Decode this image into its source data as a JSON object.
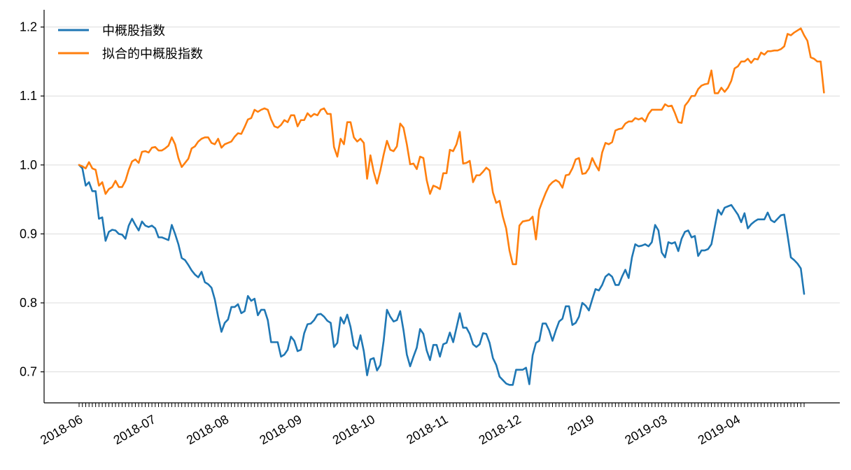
{
  "chart_data": {
    "type": "line",
    "title": "",
    "xlabel": "",
    "ylabel": "",
    "ylim": [
      0.655,
      1.225
    ],
    "yticks": [
      0.7,
      0.8,
      0.9,
      1.0,
      1.1,
      1.2
    ],
    "ytick_labels": [
      "0.7",
      "0.8",
      "0.9",
      "1.0",
      "1.1",
      "1.2"
    ],
    "xticks": [
      "2018-06",
      "2018-07",
      "2018-08",
      "2018-09",
      "2018-10",
      "2018-11",
      "2018-12",
      "2019",
      "2019-03",
      "2019-04"
    ],
    "grid": "horizontal",
    "legend_position": "top-left",
    "series": [
      {
        "name": "中概股指数",
        "color": "#1f77b4",
        "values": [
          1.0,
          0.995,
          0.97,
          0.975,
          0.962,
          0.962,
          0.922,
          0.924,
          0.89,
          0.903,
          0.906,
          0.905,
          0.9,
          0.899,
          0.893,
          0.912,
          0.922,
          0.913,
          0.905,
          0.918,
          0.912,
          0.91,
          0.912,
          0.908,
          0.895,
          0.895,
          0.893,
          0.891,
          0.913,
          0.9,
          0.885,
          0.865,
          0.862,
          0.855,
          0.847,
          0.841,
          0.837,
          0.845,
          0.83,
          0.827,
          0.822,
          0.805,
          0.78,
          0.758,
          0.771,
          0.776,
          0.794,
          0.794,
          0.798,
          0.785,
          0.788,
          0.81,
          0.803,
          0.806,
          0.782,
          0.79,
          0.79,
          0.775,
          0.743,
          0.743,
          0.743,
          0.722,
          0.725,
          0.732,
          0.751,
          0.745,
          0.73,
          0.732,
          0.756,
          0.769,
          0.77,
          0.775,
          0.783,
          0.784,
          0.78,
          0.774,
          0.771,
          0.736,
          0.742,
          0.779,
          0.77,
          0.783,
          0.765,
          0.738,
          0.733,
          0.753,
          0.73,
          0.695,
          0.718,
          0.72,
          0.702,
          0.71,
          0.745,
          0.79,
          0.78,
          0.773,
          0.775,
          0.788,
          0.76,
          0.725,
          0.708,
          0.722,
          0.735,
          0.762,
          0.755,
          0.731,
          0.717,
          0.739,
          0.739,
          0.722,
          0.74,
          0.742,
          0.757,
          0.743,
          0.764,
          0.785,
          0.764,
          0.764,
          0.755,
          0.74,
          0.736,
          0.74,
          0.756,
          0.755,
          0.742,
          0.72,
          0.71,
          0.693,
          0.688,
          0.683,
          0.681,
          0.681,
          0.703,
          0.703,
          0.703,
          0.706,
          0.682,
          0.724,
          0.742,
          0.745,
          0.77,
          0.77,
          0.76,
          0.745,
          0.76,
          0.773,
          0.777,
          0.795,
          0.795,
          0.768,
          0.771,
          0.78,
          0.8,
          0.796,
          0.789,
          0.805,
          0.82,
          0.818,
          0.826,
          0.838,
          0.842,
          0.838,
          0.826,
          0.826,
          0.838,
          0.848,
          0.836,
          0.866,
          0.885,
          0.882,
          0.883,
          0.885,
          0.882,
          0.888,
          0.913,
          0.905,
          0.873,
          0.866,
          0.888,
          0.886,
          0.888,
          0.875,
          0.893,
          0.903,
          0.905,
          0.895,
          0.897,
          0.868,
          0.876,
          0.876,
          0.878,
          0.885,
          0.91,
          0.935,
          0.928,
          0.938,
          0.94,
          0.942,
          0.935,
          0.928,
          0.917,
          0.93,
          0.908,
          0.914,
          0.918,
          0.921,
          0.921,
          0.921,
          0.931,
          0.92,
          0.917,
          0.922,
          0.927,
          0.928,
          0.898,
          0.866,
          0.862,
          0.857,
          0.85,
          0.813
        ]
      },
      {
        "name": "拟合的中概股指数",
        "color": "#ff7f0e",
        "values": [
          1.0,
          0.998,
          0.995,
          1.004,
          0.995,
          0.993,
          0.97,
          0.975,
          0.958,
          0.965,
          0.968,
          0.977,
          0.968,
          0.968,
          0.977,
          0.993,
          1.005,
          1.008,
          1.003,
          1.019,
          1.02,
          1.018,
          1.025,
          1.026,
          1.021,
          1.021,
          1.024,
          1.028,
          1.04,
          1.03,
          1.01,
          0.997,
          1.003,
          1.009,
          1.024,
          1.027,
          1.034,
          1.038,
          1.04,
          1.04,
          1.032,
          1.03,
          1.038,
          1.025,
          1.03,
          1.032,
          1.034,
          1.041,
          1.046,
          1.045,
          1.055,
          1.066,
          1.068,
          1.08,
          1.077,
          1.08,
          1.082,
          1.08,
          1.066,
          1.056,
          1.054,
          1.058,
          1.065,
          1.062,
          1.072,
          1.072,
          1.056,
          1.065,
          1.065,
          1.075,
          1.07,
          1.074,
          1.072,
          1.08,
          1.082,
          1.074,
          1.074,
          1.026,
          1.012,
          1.038,
          1.03,
          1.062,
          1.062,
          1.04,
          1.034,
          1.038,
          1.032,
          0.98,
          1.014,
          0.99,
          0.973,
          0.992,
          1.015,
          1.035,
          1.022,
          1.02,
          1.027,
          1.06,
          1.054,
          1.03,
          1.001,
          1.002,
          0.994,
          1.012,
          1.01,
          0.978,
          0.958,
          0.97,
          0.968,
          0.965,
          0.988,
          0.988,
          1.022,
          1.02,
          1.03,
          1.048,
          1.002,
          1.003,
          1.006,
          0.975,
          0.985,
          0.985,
          0.99,
          0.996,
          0.992,
          0.96,
          0.945,
          0.948,
          0.925,
          0.908,
          0.876,
          0.856,
          0.856,
          0.912,
          0.918,
          0.919,
          0.92,
          0.925,
          0.892,
          0.935,
          0.948,
          0.96,
          0.97,
          0.975,
          0.978,
          0.975,
          0.967,
          0.985,
          0.986,
          0.995,
          1.008,
          1.01,
          0.987,
          0.988,
          0.995,
          1.01,
          1.0,
          0.992,
          1.018,
          1.032,
          1.03,
          1.033,
          1.05,
          1.052,
          1.053,
          1.06,
          1.063,
          1.063,
          1.068,
          1.066,
          1.068,
          1.063,
          1.074,
          1.08,
          1.08,
          1.08,
          1.08,
          1.088,
          1.085,
          1.086,
          1.075,
          1.062,
          1.061,
          1.086,
          1.092,
          1.1,
          1.1,
          1.11,
          1.115,
          1.117,
          1.118,
          1.137,
          1.104,
          1.104,
          1.112,
          1.106,
          1.112,
          1.122,
          1.14,
          1.143,
          1.15,
          1.15,
          1.154,
          1.148,
          1.154,
          1.153,
          1.163,
          1.16,
          1.165,
          1.165,
          1.166,
          1.166,
          1.168,
          1.172,
          1.19,
          1.188,
          1.192,
          1.195,
          1.198,
          1.188,
          1.18,
          1.156,
          1.154,
          1.15,
          1.15,
          1.105
        ]
      }
    ]
  }
}
